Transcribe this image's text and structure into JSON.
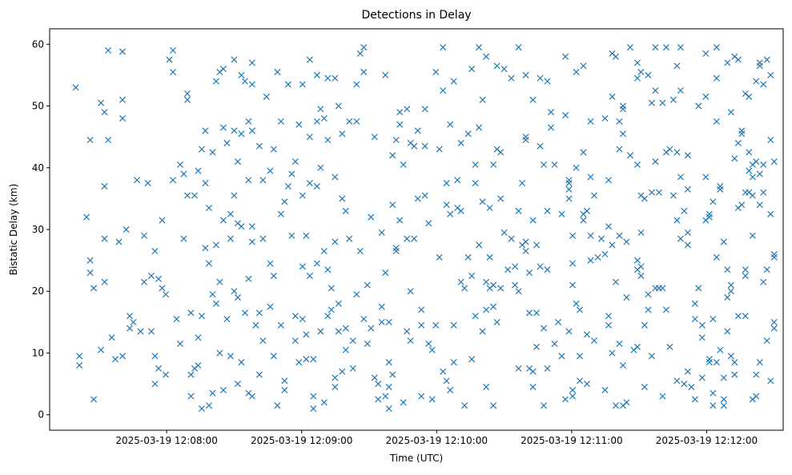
{
  "chart_data": {
    "type": "scatter",
    "title": "Detections in Delay",
    "xlabel": "Time (UTC)",
    "ylabel": "Bistatic Delay (km)",
    "marker": "x",
    "color": "#1f77b4",
    "grid": false,
    "x_ticks": [
      {
        "label": "2025-03-19 12:08:00",
        "sec": 60
      },
      {
        "label": "2025-03-19 12:09:00",
        "sec": 120
      },
      {
        "label": "2025-03-19 12:10:00",
        "sec": 180
      },
      {
        "label": "2025-03-19 12:11:00",
        "sec": 240
      },
      {
        "label": "2025-03-19 12:12:00",
        "sec": 300
      }
    ],
    "x_reference": "2025-03-19 12:07:00",
    "x_range_sec": [
      8,
      334
    ],
    "y_ticks": [
      0,
      10,
      20,
      30,
      40,
      50,
      60
    ],
    "ylim": [
      -2.5,
      62.5
    ],
    "sample_start_sec": 19.6,
    "sample_step_sec": 1.6,
    "delay_km_by_sample": [
      [
        53
      ],
      [
        9.5,
        8
      ],
      [],
      [
        32
      ],
      [
        44.5,
        25,
        23
      ],
      [
        20.5,
        2.5
      ],
      [],
      [
        10.5,
        50.5
      ],
      [
        49,
        37,
        28.5,
        21.5
      ],
      [
        44.5,
        59
      ],
      [
        12.5
      ],
      [
        9
      ],
      [
        28
      ],
      [
        58.8,
        51,
        48,
        9.5
      ],
      [
        30
      ],
      [
        14,
        16
      ],
      [
        15
      ],
      [
        38
      ],
      [
        13.5
      ],
      [
        21.5,
        29
      ],
      [
        37.5
      ],
      [
        22.5,
        13.5
      ],
      [
        9.5,
        5,
        26.5
      ],
      [
        22,
        7.5
      ],
      [
        20.5,
        31.5
      ],
      [
        6.5,
        19.5
      ],
      [
        57.5
      ],
      [
        59,
        55.5,
        38
      ],
      [
        15.5
      ],
      [
        40.5,
        11.5
      ],
      [
        39,
        28.5
      ],
      [
        52,
        51,
        35.5
      ],
      [
        16.5,
        6.5,
        3
      ],
      [
        35.5,
        7.5
      ],
      [
        39.5,
        12.5,
        8
      ],
      [
        43,
        16,
        1
      ],
      [
        27,
        46,
        37.5
      ],
      [
        33.5,
        24.5,
        1.5
      ],
      [
        42.5,
        19.5,
        3.5
      ],
      [
        54,
        27.5,
        18
      ],
      [
        55.5,
        21.5,
        10
      ],
      [
        56,
        46.5,
        31.5,
        4
      ],
      [
        44,
        15.5
      ],
      [
        32.5,
        28.5,
        9.5
      ],
      [
        57.5,
        46,
        35.5,
        20
      ],
      [
        41,
        31,
        19,
        5
      ],
      [
        55,
        45.5,
        30.5,
        8.5
      ],
      [
        54,
        16.5
      ],
      [
        47.5,
        38,
        22,
        3.5
      ],
      [
        57,
        53.5,
        46,
        30.5,
        28,
        3
      ],
      [
        14.5
      ],
      [
        43.5,
        16.5,
        6.5
      ],
      [
        12,
        28.5,
        38
      ],
      [
        51.5
      ],
      [
        39.5,
        24.5,
        17.5
      ],
      [
        22.5,
        43,
        9.5
      ],
      [
        55.5,
        1.5
      ],
      [
        47.5,
        32.5,
        14.5
      ],
      [
        5.5,
        4,
        34.5
      ],
      [
        53.5,
        37
      ],
      [
        29,
        39
      ],
      [
        41,
        16,
        12
      ],
      [
        47,
        8.5
      ],
      [
        53.5,
        35.5,
        24,
        15.5
      ],
      [
        29,
        13,
        9
      ],
      [
        45,
        37.5,
        57.5,
        22.5
      ],
      [
        9,
        1,
        3
      ],
      [
        55,
        47.5,
        24.5,
        37
      ],
      [
        49.5,
        13.5,
        40
      ],
      [
        48,
        26.5,
        2
      ],
      [
        44.5,
        54.5,
        23.5,
        16
      ],
      [
        20.5,
        17
      ],
      [
        38.5,
        54.5,
        28,
        4.5,
        6
      ],
      [
        50,
        13.5,
        18
      ],
      [
        45.5,
        35,
        7
      ],
      [
        33,
        14,
        10.5
      ],
      [
        47.5,
        28.5
      ],
      [
        12,
        7.5
      ],
      [
        53.5,
        47.5,
        19.5
      ],
      [
        58.5,
        26.5
      ],
      [
        55.5,
        59.5,
        15.5
      ],
      [
        11.5,
        21
      ],
      [
        32,
        14
      ],
      [
        6,
        45
      ],
      [
        5,
        2.5
      ],
      [
        17.5,
        29.5,
        15
      ],
      [
        55,
        3,
        23
      ],
      [
        8.5,
        15,
        4.5,
        1
      ],
      [
        34,
        6.5,
        42
      ],
      [
        26.5,
        44.5,
        27
      ],
      [
        31.5,
        47,
        49
      ],
      [
        40.5,
        2
      ],
      [
        49.5,
        28.5,
        13.5
      ],
      [
        44,
        12,
        20
      ],
      [
        43.5,
        28.5
      ],
      [
        35,
        46
      ],
      [
        3,
        14.5,
        17
      ],
      [
        49.5,
        35.5,
        43.5
      ],
      [
        31,
        11.5
      ],
      [
        2.5,
        10.5
      ],
      [
        14.5,
        55.5
      ],
      [
        43,
        25.5
      ],
      [
        59.5,
        52.5,
        7
      ],
      [
        37.5,
        5.5,
        34
      ],
      [
        4,
        47,
        32.5
      ],
      [
        54,
        8.5,
        14.5
      ],
      [
        38,
        33.5
      ],
      [
        21.5,
        44,
        33
      ],
      [
        1.5,
        20.5
      ],
      [
        25.5,
        45.5
      ],
      [
        22.5,
        9,
        56
      ],
      [
        40.5,
        16,
        37.5
      ],
      [
        59.5,
        46.5,
        27.5
      ],
      [
        51,
        13.5,
        34.5
      ],
      [
        17,
        21.5,
        58,
        4.5
      ],
      [
        33.5,
        25.5,
        20.5
      ],
      [
        17.5,
        21,
        40.5,
        1.5
      ],
      [
        56.5,
        43,
        15
      ],
      [
        42.5,
        35,
        20.5
      ],
      [
        29.5,
        56
      ],
      [
        23.5
      ],
      [
        54.5,
        28.5
      ],
      [
        21,
        24
      ],
      [
        59.5,
        33,
        20,
        7.5
      ],
      [
        37.5,
        27.5
      ],
      [
        28,
        45,
        44.5,
        26.5,
        55
      ],
      [
        23,
        7.5,
        16.5
      ],
      [
        51,
        31.5,
        4.5,
        7
      ],
      [
        27.5,
        11,
        16.5
      ],
      [
        24,
        54.5,
        43.5
      ],
      [
        40.5,
        1.5,
        14
      ],
      [
        23.5,
        33,
        7.5,
        54
      ],
      [
        46.5,
        49
      ],
      [
        40.5,
        11.5
      ],
      [
        15
      ],
      [
        9.5,
        32.5
      ],
      [
        58,
        48.5,
        2.5
      ],
      [
        37.5,
        36.5,
        38,
        13.5,
        35
      ],
      [
        24.5,
        29,
        21,
        3,
        4
      ],
      [
        18,
        40,
        55.5
      ],
      [
        17,
        9.5,
        5.5
      ],
      [
        56.5,
        42.5,
        31.5,
        32.5
      ],
      [
        33,
        13,
        5
      ],
      [
        47.5,
        29,
        25,
        38.5
      ],
      [
        12,
        35.5
      ],
      [
        25.5
      ],
      [
        28.5
      ],
      [
        48,
        26,
        4
      ],
      [
        30.5,
        16,
        14.5,
        38
      ],
      [
        51.5,
        58.5,
        10,
        27.5
      ],
      [
        58,
        21.5,
        1.5
      ],
      [
        43,
        47.5,
        29,
        11.5
      ],
      [
        45.5,
        49.5,
        50,
        8,
        1.5
      ],
      [
        28,
        19,
        2
      ],
      [
        59.5,
        42
      ],
      [
        10.5
      ],
      [
        57,
        54.5,
        40.5,
        25,
        23.5,
        11
      ],
      [
        55.5,
        35.5,
        29.5,
        22.5,
        24
      ],
      [
        35,
        14.5,
        4.5
      ],
      [
        55,
        17,
        19.5
      ],
      [
        50.5,
        36,
        9.5
      ],
      [
        59.5,
        52.5,
        41,
        20.5
      ],
      [
        20.5,
        36
      ],
      [
        50.5,
        3,
        20.5
      ],
      [
        59.5,
        17,
        42.5
      ],
      [
        43,
        11
      ],
      [
        51,
        35.5
      ],
      [
        56.5,
        5.5,
        31.5,
        42.5
      ],
      [
        59.5,
        52.5,
        38.5,
        28.5
      ],
      [
        5,
        33
      ],
      [
        29.5,
        27.5,
        7,
        36.5,
        42
      ],
      [
        4.5
      ],
      [
        2.5,
        18,
        15.5
      ],
      [
        20.5,
        50
      ],
      [
        14.5,
        12.5,
        6
      ],
      [
        51.5,
        58.5,
        38.5,
        31.5
      ],
      [
        8.5,
        32.5,
        9,
        32
      ],
      [
        15.5,
        34.5,
        1.5,
        3.5
      ],
      [
        54.5,
        25.5,
        47.5,
        8.5,
        59.5
      ],
      [
        37,
        36.5,
        10.5
      ],
      [
        6,
        2.5,
        1.5,
        28
      ],
      [
        23.5,
        57,
        13.5,
        19
      ],
      [
        49,
        20,
        9.5,
        21
      ],
      [
        41.5,
        58,
        8.5,
        6.5
      ],
      [
        57.5,
        44,
        33.5,
        16
      ],
      [
        46,
        34,
        45.5
      ],
      [
        16,
        22.5,
        52,
        36,
        23.5
      ],
      [
        39.5,
        42.5,
        51.5,
        36
      ],
      [
        29,
        40.5,
        2.5,
        38.5,
        35.5
      ],
      [
        54,
        6.5,
        3,
        41
      ],
      [
        57,
        56.5,
        8.5,
        39,
        34
      ],
      [
        40.5,
        53.5,
        21.5,
        36
      ],
      [
        57.5,
        23.5,
        12
      ],
      [
        44.5,
        5.5,
        32.5,
        55
      ],
      [
        41,
        15,
        14,
        25.5,
        26
      ]
    ]
  }
}
